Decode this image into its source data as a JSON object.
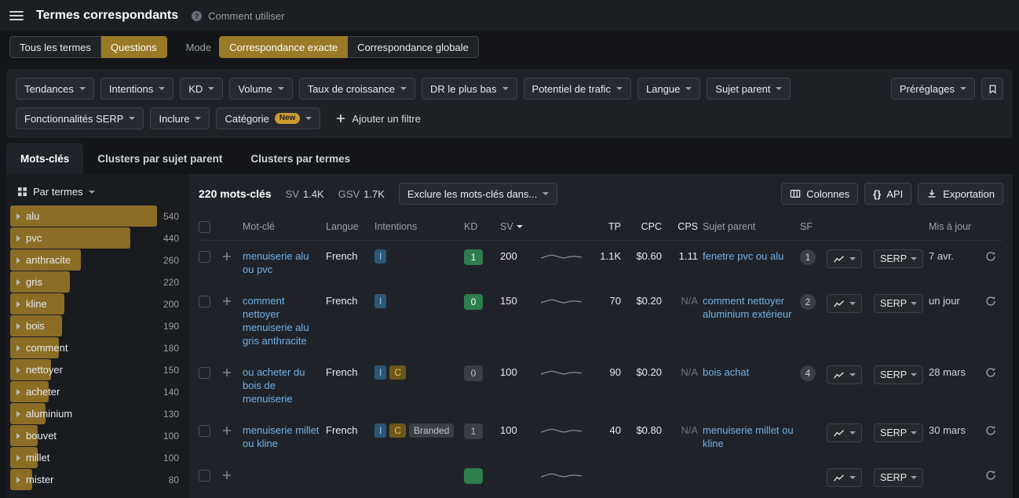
{
  "topbar": {
    "title": "Termes correspondants",
    "help": "Comment utiliser"
  },
  "modebar": {
    "scope": [
      {
        "label": "Tous les termes",
        "active": false
      },
      {
        "label": "Questions",
        "active": true
      }
    ],
    "mode_label": "Mode",
    "modes": [
      {
        "label": "Correspondance exacte",
        "active": true
      },
      {
        "label": "Correspondance globale",
        "active": false
      }
    ]
  },
  "filters": {
    "row1": [
      "Tendances",
      "Intentions",
      "KD",
      "Volume",
      "Taux de croissance",
      "DR le plus bas",
      "Potentiel de trafic",
      "Langue",
      "Sujet parent"
    ],
    "row2": [
      "Fonctionnalités SERP",
      "Inclure"
    ],
    "category": {
      "label": "Catégorie",
      "badge": "New"
    },
    "add_filter": "Ajouter un filtre",
    "presets": "Préréglages"
  },
  "tabs": [
    {
      "label": "Mots-clés",
      "active": true
    },
    {
      "label": "Clusters par sujet parent",
      "active": false
    },
    {
      "label": "Clusters par termes",
      "active": false
    }
  ],
  "sidebar": {
    "title": "Par termes",
    "max": 540,
    "terms": [
      {
        "label": "alu",
        "count": 540
      },
      {
        "label": "pvc",
        "count": 440
      },
      {
        "label": "anthracite",
        "count": 260
      },
      {
        "label": "gris",
        "count": 220
      },
      {
        "label": "kline",
        "count": 200
      },
      {
        "label": "bois",
        "count": 190
      },
      {
        "label": "comment",
        "count": 180
      },
      {
        "label": "nettoyer",
        "count": 150
      },
      {
        "label": "acheter",
        "count": 140
      },
      {
        "label": "aluminium",
        "count": 130
      },
      {
        "label": "bouvet",
        "count": 100
      },
      {
        "label": "millet",
        "count": 100
      },
      {
        "label": "mister",
        "count": 80
      }
    ]
  },
  "toolbar": {
    "total": "220 mots-clés",
    "sv_label": "SV",
    "sv_value": "1.4K",
    "gsv_label": "GSV",
    "gsv_value": "1.7K",
    "exclude": "Exclure les mots-clés dans...",
    "columns": "Colonnes",
    "api_icon": "{}",
    "api": "API",
    "export": "Exportation"
  },
  "table": {
    "headers": {
      "keyword": "Mot-clé",
      "lang": "Langue",
      "intents": "Intentions",
      "kd": "KD",
      "sv": "SV",
      "tp": "TP",
      "cpc": "CPC",
      "cps": "CPS",
      "parent": "Sujet parent",
      "sf": "SF",
      "updated": "Mis à jour"
    },
    "rows": [
      {
        "keyword": "menuiserie alu ou pvc",
        "lang": "French",
        "intents": [
          "I"
        ],
        "kd": "1",
        "kd_tone": "green",
        "sv": "200",
        "tp": "1.1K",
        "cpc": "$0.60",
        "cps": "1.11",
        "cps_muted": false,
        "parent": "fenetre pvc ou alu",
        "sf": "1",
        "serp": "SERP",
        "updated": "7 avr."
      },
      {
        "keyword": "comment nettoyer menuiserie alu gris anthracite",
        "lang": "French",
        "intents": [
          "I"
        ],
        "kd": "0",
        "kd_tone": "green",
        "sv": "150",
        "tp": "70",
        "cpc": "$0.20",
        "cps": "N/A",
        "cps_muted": true,
        "parent": "comment nettoyer aluminium extérieur",
        "sf": "2",
        "serp": "SERP",
        "updated": "un jour"
      },
      {
        "keyword": "ou acheter du bois de menuiserie",
        "lang": "French",
        "intents": [
          "I",
          "C"
        ],
        "kd": "0",
        "kd_tone": "gray",
        "sv": "100",
        "tp": "90",
        "cpc": "$0.20",
        "cps": "N/A",
        "cps_muted": true,
        "parent": "bois achat",
        "sf": "4",
        "serp": "SERP",
        "updated": "28 mars"
      },
      {
        "keyword": "menuiserie millet ou kline",
        "lang": "French",
        "intents": [
          "I",
          "C",
          "Branded"
        ],
        "kd": "1",
        "kd_tone": "gray",
        "sv": "100",
        "tp": "40",
        "cpc": "$0.80",
        "cps": "N/A",
        "cps_muted": true,
        "parent": "menuiserie millet ou kline",
        "sf": "",
        "serp": "SERP",
        "updated": "30 mars"
      },
      {
        "keyword": "",
        "lang": "",
        "intents": [],
        "kd": "",
        "kd_tone": "green",
        "sv": "",
        "tp": "",
        "cpc": "",
        "cps": "",
        "cps_muted": true,
        "parent": "",
        "sf": "",
        "serp": "SERP",
        "updated": ""
      }
    ]
  }
}
